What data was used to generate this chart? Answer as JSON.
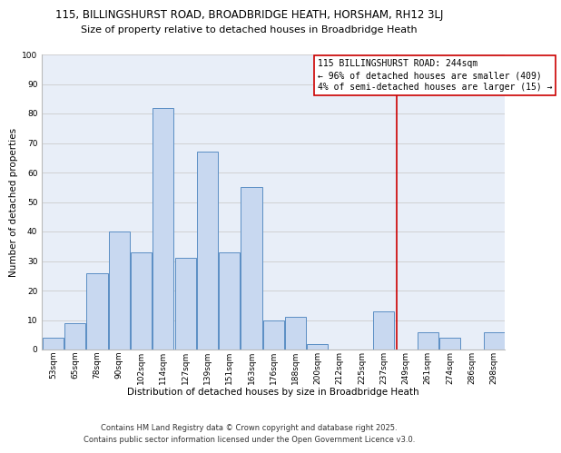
{
  "title_line1": "115, BILLINGSHURST ROAD, BROADBRIDGE HEATH, HORSHAM, RH12 3LJ",
  "title_line2": "Size of property relative to detached houses in Broadbridge Heath",
  "xlabel": "Distribution of detached houses by size in Broadbridge Heath",
  "ylabel": "Number of detached properties",
  "bin_labels": [
    "53sqm",
    "65sqm",
    "78sqm",
    "90sqm",
    "102sqm",
    "114sqm",
    "127sqm",
    "139sqm",
    "151sqm",
    "163sqm",
    "176sqm",
    "188sqm",
    "200sqm",
    "212sqm",
    "225sqm",
    "237sqm",
    "249sqm",
    "261sqm",
    "274sqm",
    "286sqm",
    "298sqm"
  ],
  "bar_values": [
    4,
    9,
    26,
    40,
    33,
    82,
    31,
    67,
    33,
    55,
    10,
    11,
    2,
    0,
    0,
    13,
    0,
    6,
    4,
    0,
    6
  ],
  "bar_color": "#c8d8f0",
  "bar_edgecolor": "#5b8ec4",
  "grid_color": "#cccccc",
  "bg_color": "#e8eef8",
  "vline_x": 15.583,
  "vline_color": "#cc0000",
  "annotation_title": "115 BILLINGSHURST ROAD: 244sqm",
  "annotation_line1": "← 96% of detached houses are smaller (409)",
  "annotation_line2": "4% of semi-detached houses are larger (15) →",
  "annotation_box_edgecolor": "#cc0000",
  "annotation_box_facecolor": "#ffffff",
  "ylim": [
    0,
    100
  ],
  "footer1": "Contains HM Land Registry data © Crown copyright and database right 2025.",
  "footer2": "Contains public sector information licensed under the Open Government Licence v3.0.",
  "title_fontsize": 8.5,
  "subtitle_fontsize": 8.0,
  "axis_label_fontsize": 7.5,
  "tick_fontsize": 6.5,
  "footer_fontsize": 6.0,
  "annotation_fontsize": 7.0
}
